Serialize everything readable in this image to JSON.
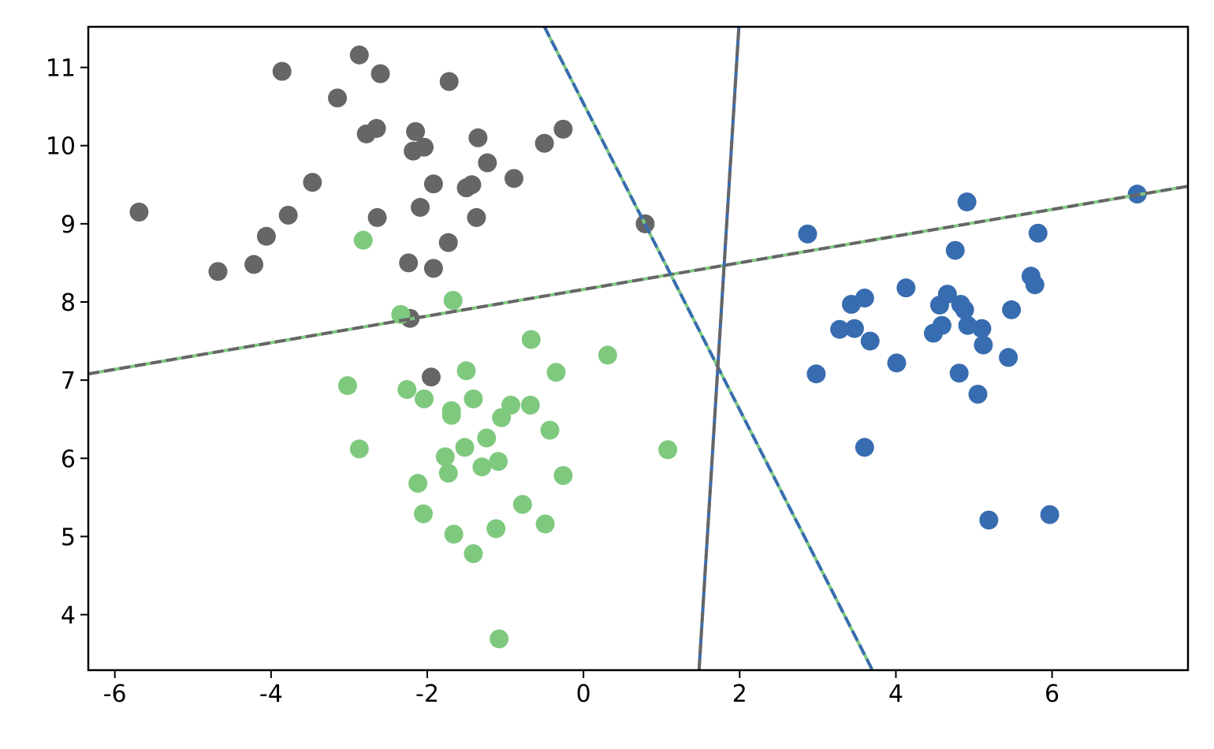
{
  "chart_data": {
    "type": "scatter",
    "xlim": [
      -6.34,
      7.74
    ],
    "ylim": [
      3.29,
      11.52
    ],
    "xticks": [
      -6,
      -4,
      -2,
      0,
      2,
      4,
      6
    ],
    "yticks": [
      4,
      5,
      6,
      7,
      8,
      9,
      10,
      11
    ],
    "series": [
      {
        "type": "scatter",
        "color": "#666666",
        "x": [
          -5.69,
          -4.68,
          -4.22,
          -4.06,
          -3.78,
          -3.86,
          -3.47,
          -3.15,
          -2.87,
          -2.6,
          -2.78,
          -2.65,
          -2.64,
          -2.24,
          -2.22,
          -2.15,
          -2.18,
          -2.04,
          -2.09,
          -1.92,
          -1.92,
          -1.95,
          -1.72,
          -1.73,
          -1.5,
          -1.43,
          -1.37,
          -1.35,
          -1.23,
          -0.89,
          -0.5,
          -0.26,
          0.79
        ],
        "values": [
          9.15,
          8.39,
          8.48,
          8.84,
          9.11,
          10.95,
          9.53,
          10.61,
          11.16,
          10.92,
          10.15,
          10.22,
          9.08,
          8.5,
          7.79,
          10.18,
          9.93,
          9.98,
          9.21,
          9.51,
          8.43,
          7.04,
          10.82,
          8.76,
          9.46,
          9.5,
          9.08,
          10.1,
          9.78,
          9.58,
          10.03,
          10.21,
          9.0
        ]
      },
      {
        "type": "scatter",
        "color": "#7fc97f",
        "x": [
          -2.82,
          -2.34,
          -1.67,
          -3.02,
          -2.87,
          -2.26,
          -2.04,
          -1.5,
          -0.67,
          -0.35,
          0.31,
          -1.69,
          -1.69,
          -1.41,
          -0.93,
          -1.05,
          -0.68,
          -0.43,
          -1.24,
          -1.52,
          -1.77,
          -1.73,
          -1.3,
          -1.09,
          -2.12,
          -0.26,
          1.08,
          -2.05,
          -0.78,
          -0.49,
          -1.66,
          -1.12,
          -1.41,
          -1.08
        ],
        "values": [
          8.79,
          7.84,
          8.02,
          6.93,
          6.12,
          6.88,
          6.76,
          7.12,
          7.52,
          7.1,
          7.32,
          6.61,
          6.55,
          6.76,
          6.68,
          6.52,
          6.68,
          6.36,
          6.26,
          6.14,
          6.02,
          5.81,
          5.89,
          5.96,
          5.68,
          5.78,
          6.11,
          5.29,
          5.41,
          5.16,
          5.03,
          5.1,
          4.78,
          3.69
        ]
      },
      {
        "type": "scatter",
        "color": "#386cb0",
        "x": [
          7.09,
          4.91,
          2.87,
          5.82,
          4.76,
          5.73,
          5.78,
          4.13,
          3.6,
          3.43,
          4.66,
          4.56,
          4.83,
          4.88,
          5.48,
          3.28,
          3.47,
          4.59,
          4.48,
          4.92,
          5.1,
          3.67,
          5.12,
          4.01,
          2.98,
          4.81,
          5.44,
          5.05,
          3.6,
          5.19,
          5.97
        ],
        "values": [
          9.38,
          9.28,
          8.87,
          8.88,
          8.66,
          8.33,
          8.22,
          8.18,
          8.05,
          7.97,
          8.1,
          7.96,
          7.97,
          7.9,
          7.9,
          7.65,
          7.66,
          7.7,
          7.6,
          7.7,
          7.66,
          7.5,
          7.45,
          7.22,
          7.08,
          7.09,
          7.29,
          6.82,
          6.14,
          5.21,
          5.28
        ]
      },
      {
        "type": "line",
        "color": "#7fc97f",
        "dash_color": "#666666",
        "x": [
          -6.34,
          7.74
        ],
        "values": [
          7.08,
          9.48
        ]
      },
      {
        "type": "line",
        "color": "#7fc97f",
        "dash_color": "#386cb0",
        "x": [
          -0.5,
          3.7
        ],
        "values": [
          11.52,
          3.29
        ]
      },
      {
        "type": "line",
        "color": "#386cb0",
        "dash_color": "#666666",
        "x": [
          1.48,
          1.99
        ],
        "values": [
          3.29,
          11.52
        ]
      }
    ]
  }
}
